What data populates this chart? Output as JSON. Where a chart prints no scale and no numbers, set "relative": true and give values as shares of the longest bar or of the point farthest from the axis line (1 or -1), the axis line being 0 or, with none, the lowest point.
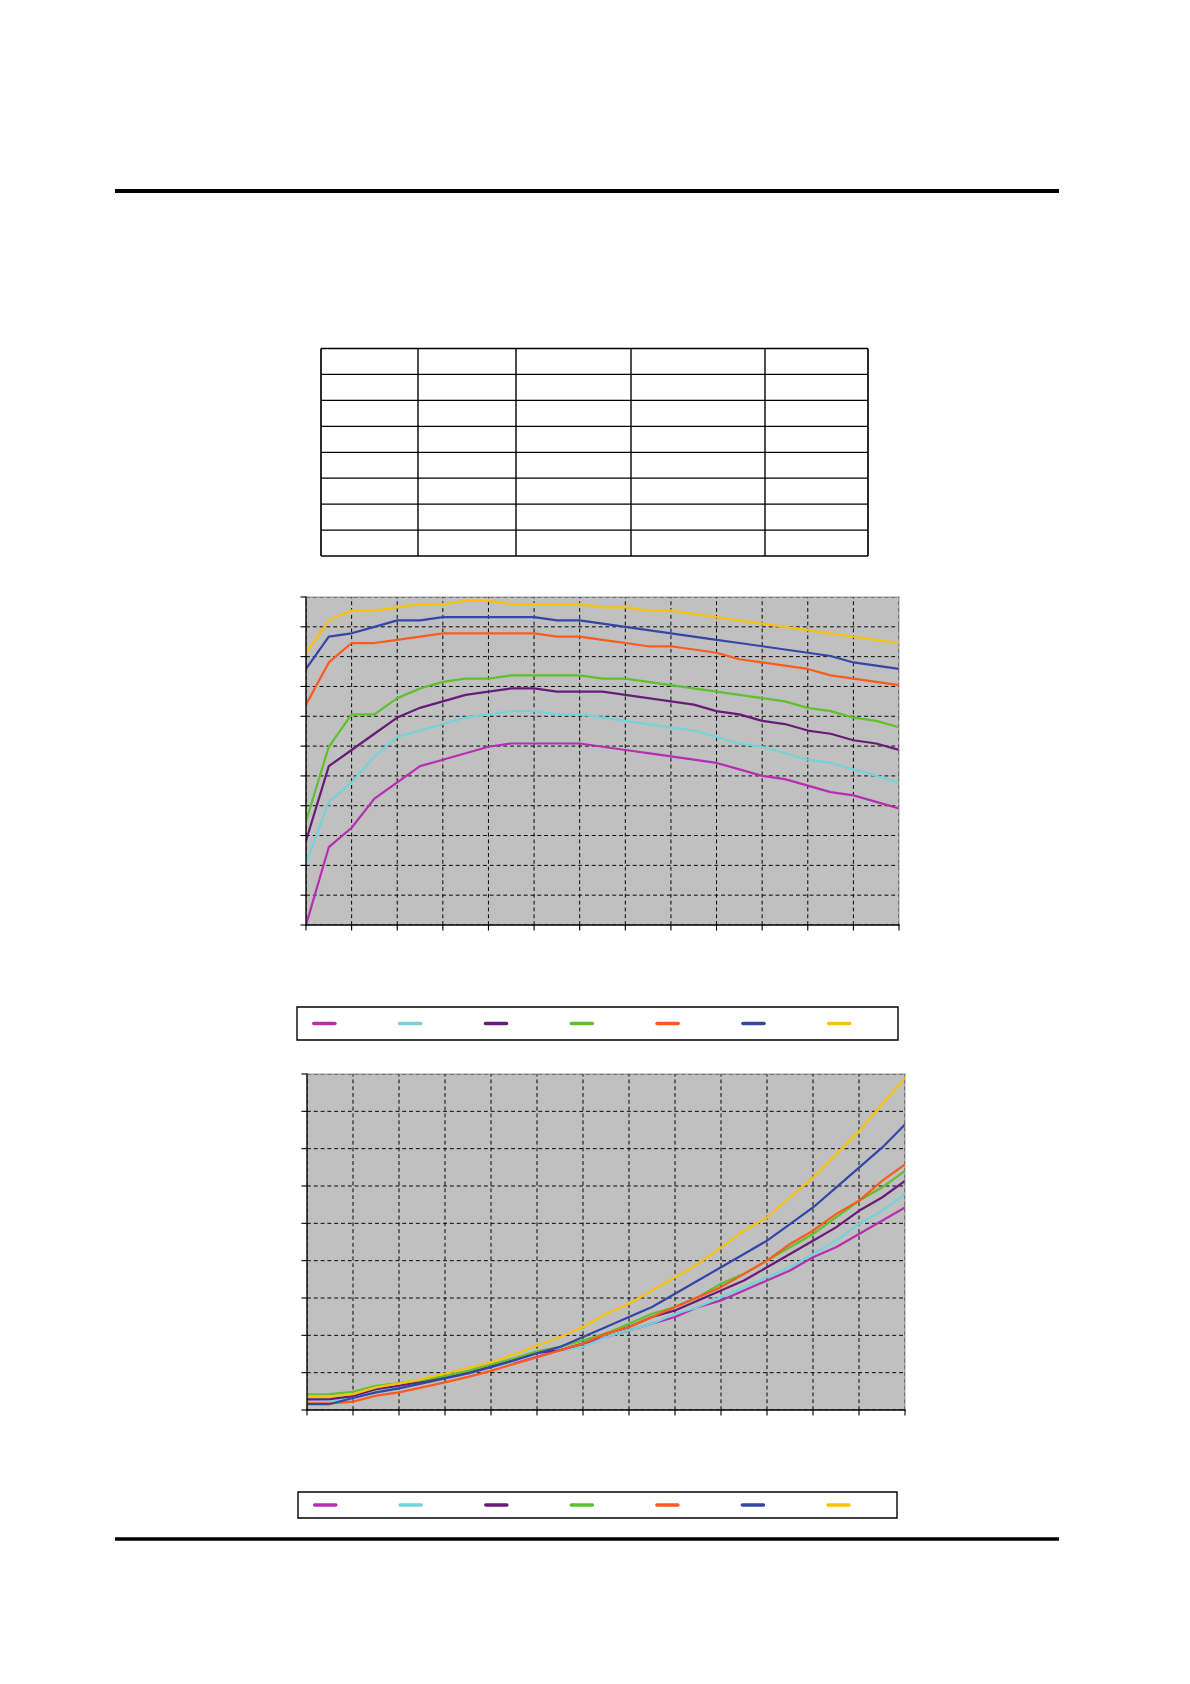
{
  "chart_data": [
    {
      "type": "line",
      "relative": true,
      "grid": true,
      "tick_labels": false,
      "categories": [
        null,
        null,
        null,
        null,
        null,
        null,
        null,
        null,
        null,
        null,
        null,
        null,
        null,
        null,
        null,
        null,
        null,
        null,
        null,
        null,
        null,
        null,
        null,
        null,
        null,
        null,
        null
      ],
      "series": [
        {
          "color": "#b62fb2",
          "values": [
            0.0,
            0.24,
            0.3,
            0.39,
            0.44,
            0.49,
            0.51,
            0.53,
            0.55,
            0.56,
            0.56,
            0.56,
            0.56,
            0.55,
            0.54,
            0.53,
            0.52,
            0.51,
            0.5,
            0.48,
            0.46,
            0.45,
            0.43,
            0.41,
            0.4,
            0.38,
            0.36
          ]
        },
        {
          "color": "#74d3d9",
          "values": [
            0.19,
            0.38,
            0.44,
            0.52,
            0.58,
            0.6,
            0.62,
            0.64,
            0.65,
            0.66,
            0.66,
            0.65,
            0.65,
            0.64,
            0.63,
            0.62,
            0.61,
            0.6,
            0.58,
            0.56,
            0.55,
            0.53,
            0.51,
            0.5,
            0.48,
            0.46,
            0.44
          ]
        },
        {
          "color": "#681c78",
          "values": [
            0.26,
            0.49,
            0.54,
            0.59,
            0.64,
            0.67,
            0.69,
            0.71,
            0.72,
            0.73,
            0.73,
            0.72,
            0.72,
            0.72,
            0.71,
            0.7,
            0.69,
            0.68,
            0.66,
            0.65,
            0.63,
            0.62,
            0.6,
            0.59,
            0.57,
            0.56,
            0.54
          ]
        },
        {
          "color": "#5ec22e",
          "values": [
            0.32,
            0.55,
            0.65,
            0.65,
            0.7,
            0.73,
            0.75,
            0.76,
            0.76,
            0.77,
            0.77,
            0.77,
            0.77,
            0.76,
            0.76,
            0.75,
            0.74,
            0.73,
            0.72,
            0.71,
            0.7,
            0.69,
            0.67,
            0.66,
            0.64,
            0.63,
            0.61
          ]
        },
        {
          "color": "#ff5a1e",
          "values": [
            0.68,
            0.81,
            0.87,
            0.87,
            0.88,
            0.89,
            0.9,
            0.9,
            0.9,
            0.9,
            0.9,
            0.89,
            0.89,
            0.88,
            0.87,
            0.86,
            0.86,
            0.85,
            0.84,
            0.82,
            0.81,
            0.8,
            0.79,
            0.77,
            0.76,
            0.75,
            0.74
          ]
        },
        {
          "color": "#3447a6",
          "values": [
            0.79,
            0.89,
            0.9,
            0.92,
            0.94,
            0.94,
            0.95,
            0.95,
            0.95,
            0.95,
            0.95,
            0.94,
            0.94,
            0.93,
            0.92,
            0.91,
            0.9,
            0.89,
            0.88,
            0.87,
            0.86,
            0.85,
            0.84,
            0.83,
            0.81,
            0.8,
            0.79
          ]
        },
        {
          "color": "#f7c20c",
          "values": [
            0.84,
            0.94,
            0.97,
            0.97,
            0.98,
            0.99,
            0.99,
            1.0,
            1.0,
            0.99,
            0.99,
            0.99,
            0.99,
            0.98,
            0.98,
            0.97,
            0.97,
            0.96,
            0.95,
            0.94,
            0.93,
            0.92,
            0.91,
            0.9,
            0.89,
            0.88,
            0.87
          ]
        }
      ]
    },
    {
      "type": "line",
      "relative": true,
      "grid": true,
      "tick_labels": false,
      "categories": [
        null,
        null,
        null,
        null,
        null,
        null,
        null,
        null,
        null,
        null,
        null,
        null,
        null,
        null,
        null,
        null,
        null,
        null,
        null,
        null,
        null,
        null,
        null,
        null,
        null,
        null,
        null
      ],
      "series": [
        {
          "color": "#b62fb2",
          "values": [
            null,
            null,
            null,
            null,
            null,
            null,
            null,
            null,
            null,
            0.14,
            0.16,
            0.18,
            0.2,
            0.22,
            0.24,
            0.26,
            0.28,
            0.31,
            0.33,
            0.36,
            0.39,
            0.42,
            0.46,
            0.49,
            0.53,
            0.57,
            0.61
          ]
        },
        {
          "color": "#74d3d9",
          "values": [
            0.026,
            0.026,
            0.038,
            0.058,
            0.068,
            null,
            null,
            null,
            null,
            null,
            null,
            0.18,
            0.19,
            0.22,
            0.24,
            0.26,
            0.29,
            0.31,
            0.34,
            0.37,
            0.4,
            0.43,
            0.47,
            0.51,
            0.56,
            0.6,
            0.65
          ]
        },
        {
          "color": "#681c78",
          "values": [
            0.032,
            0.033,
            0.042,
            0.063,
            0.073,
            0.085,
            0.098,
            0.113,
            0.131,
            0.151,
            0.172,
            0.18,
            0.2,
            0.23,
            0.25,
            0.28,
            0.3,
            0.33,
            0.36,
            0.39,
            0.43,
            0.47,
            0.51,
            0.55,
            0.6,
            0.64,
            0.69
          ]
        },
        {
          "color": "#5ec22e",
          "values": [
            0.047,
            0.048,
            0.055,
            0.073,
            0.081,
            0.09,
            0.103,
            0.118,
            0.137,
            0.156,
            0.177,
            0.19,
            0.21,
            0.23,
            0.26,
            0.29,
            0.31,
            0.34,
            0.38,
            0.41,
            0.45,
            0.49,
            0.53,
            0.58,
            0.63,
            0.67,
            0.72
          ]
        },
        {
          "color": "#ff5a1e",
          "values": [
            0.02,
            0.02,
            0.025,
            0.043,
            0.053,
            0.068,
            0.083,
            0.1,
            0.118,
            0.139,
            0.159,
            0.18,
            0.2,
            0.23,
            0.25,
            0.28,
            0.31,
            0.34,
            0.37,
            0.41,
            0.45,
            0.5,
            0.54,
            0.59,
            0.63,
            0.69,
            0.74
          ]
        },
        {
          "color": "#3447a6",
          "values": [
            0.018,
            0.018,
            0.036,
            0.053,
            0.065,
            0.08,
            0.095,
            0.11,
            0.129,
            0.149,
            0.171,
            0.19,
            0.22,
            0.25,
            0.28,
            0.31,
            0.35,
            0.39,
            0.43,
            0.47,
            0.51,
            0.56,
            0.61,
            0.67,
            0.73,
            0.79,
            0.86
          ]
        },
        {
          "color": "#f7c20c",
          "values": [
            0.04,
            0.041,
            0.048,
            0.068,
            0.08,
            0.093,
            0.11,
            0.127,
            0.144,
            0.167,
            0.194,
            0.22,
            0.25,
            0.29,
            0.32,
            0.36,
            0.4,
            0.44,
            0.49,
            0.54,
            0.58,
            0.64,
            0.7,
            0.77,
            0.84,
            0.92,
            1.0
          ]
        }
      ]
    }
  ]
}
